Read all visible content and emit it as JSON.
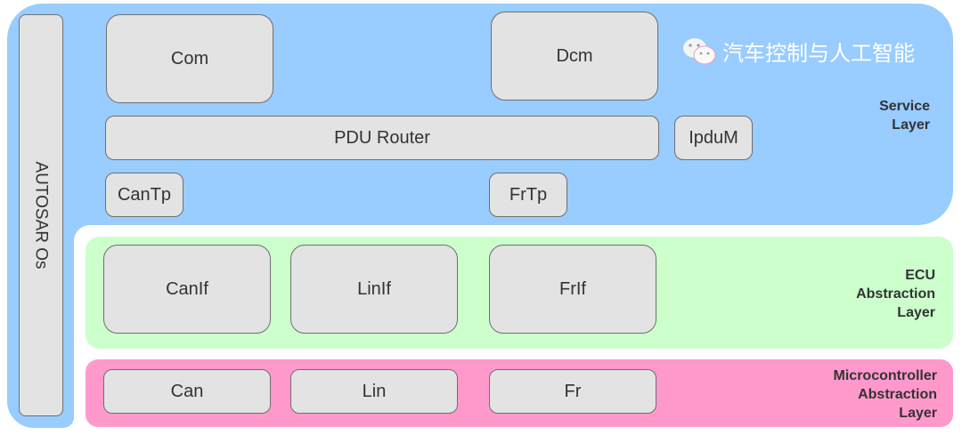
{
  "colors": {
    "service": "#99ccff",
    "ecu": "#ccffcc",
    "mcal": "#ff99cc",
    "module": "#e3e3e3"
  },
  "os": {
    "label": "AUTOSAR Os"
  },
  "service": {
    "label_line1": "Service",
    "label_line2": "Layer",
    "modules": {
      "com": "Com",
      "dcm": "Dcm",
      "pdur": "PDU Router",
      "ipdum": "IpduM",
      "cantp": "CanTp",
      "frtp": "FrTp"
    }
  },
  "ecu": {
    "label_line1": "ECU",
    "label_line2": "Abstraction",
    "label_line3": "Layer",
    "modules": {
      "canif": "CanIf",
      "linif": "LinIf",
      "frif": "FrIf"
    }
  },
  "mcal": {
    "label_line1": "Microcontroller",
    "label_line2": "Abstraction",
    "label_line3": "Layer",
    "modules": {
      "can": "Can",
      "lin": "Lin",
      "fr": "Fr"
    }
  },
  "watermark": {
    "text": "汽车控制与人工智能",
    "icon": "wechat-icon"
  }
}
